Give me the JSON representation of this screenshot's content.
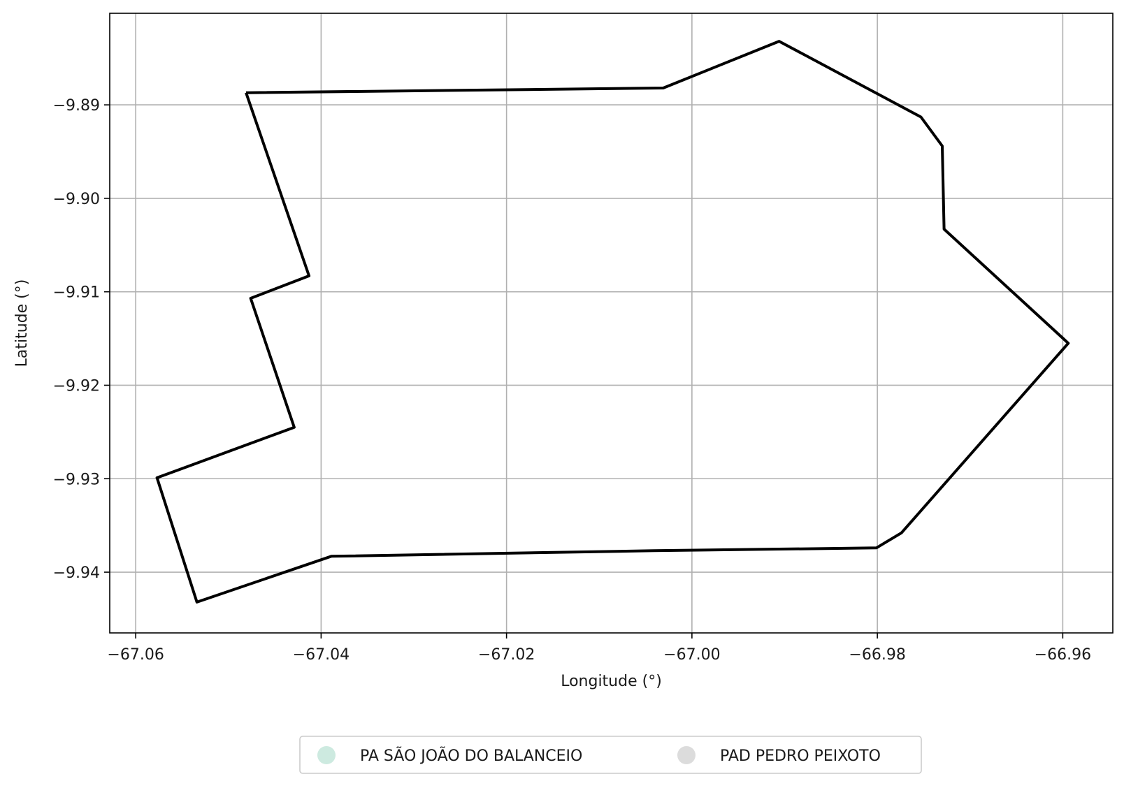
{
  "chart_data": {
    "type": "line",
    "xlabel": "Longitude (°)",
    "ylabel": "Latitude (°)",
    "xlim": [
      -67.0628,
      -66.9546
    ],
    "ylim": [
      -9.9465,
      -9.8802
    ],
    "x_ticks": [
      -67.06,
      -67.04,
      -67.02,
      -67.0,
      -66.98,
      -66.96
    ],
    "x_tick_labels": [
      "−67.06",
      "−67.04",
      "−67.02",
      "−67.00",
      "−66.98",
      "−66.96"
    ],
    "y_ticks": [
      -9.89,
      -9.9,
      -9.91,
      -9.92,
      -9.93,
      -9.94
    ],
    "y_tick_labels": [
      "−9.89",
      "−9.90",
      "−9.91",
      "−9.92",
      "−9.93",
      "−9.94"
    ],
    "grid": true,
    "legend_position": "bottom-center",
    "legend": [
      {
        "label": "PA SÃO JOÃO DO BALANCEIO",
        "color": "#cdeae0"
      },
      {
        "label": "PAD PEDRO PEIXOTO",
        "color": "#dcdcdc"
      }
    ],
    "series": [
      {
        "color": "#000000",
        "points": [
          [
            -67.0481,
            -9.8887
          ],
          [
            -67.0031,
            -9.8882
          ],
          [
            -66.9906,
            -9.8832
          ],
          [
            -66.9753,
            -9.8913
          ],
          [
            -66.973,
            -9.8944
          ],
          [
            -66.9728,
            -9.9033
          ],
          [
            -66.9594,
            -9.9155
          ],
          [
            -66.9774,
            -9.9358
          ],
          [
            -66.9801,
            -9.9374
          ],
          [
            -67.0041,
            -9.9377
          ],
          [
            -67.0389,
            -9.9383
          ],
          [
            -67.0534,
            -9.9432
          ],
          [
            -67.0577,
            -9.9299
          ],
          [
            -67.0429,
            -9.9245
          ],
          [
            -67.0476,
            -9.9107
          ],
          [
            -67.0413,
            -9.9083
          ],
          [
            -67.0481,
            -9.8887
          ]
        ]
      }
    ]
  }
}
